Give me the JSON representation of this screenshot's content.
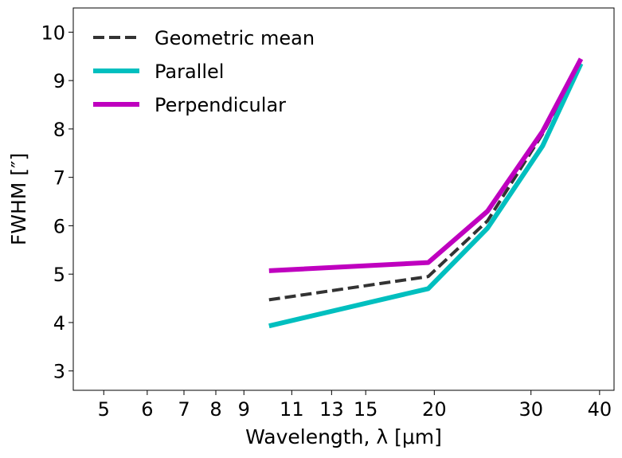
{
  "chart_data": {
    "type": "line",
    "title": "",
    "xlabel": "Wavelength, λ [μm]",
    "ylabel": "FWHM [″]",
    "xscale": "log",
    "xlim": [
      4.4,
      42.5
    ],
    "ylim": [
      2.6,
      10.5
    ],
    "xticks": [
      5,
      6,
      7,
      8,
      9,
      11,
      13,
      15,
      20,
      30,
      40
    ],
    "yticks": [
      3,
      4,
      5,
      6,
      7,
      8,
      9,
      10
    ],
    "grid": false,
    "legend_position": "top-left",
    "series": [
      {
        "name": "Geometric mean",
        "color": "#333333",
        "style": "dashed",
        "x": [
          10,
          19.5,
          25,
          31.5,
          37
        ],
        "y": [
          4.47,
          4.95,
          6.1,
          7.9,
          9.4
        ]
      },
      {
        "name": "Parallel",
        "color": "#00bfbf",
        "style": "solid",
        "x": [
          10,
          19.5,
          25,
          31.5,
          37
        ],
        "y": [
          3.93,
          4.7,
          5.95,
          7.65,
          9.35
        ]
      },
      {
        "name": "Perpendicular",
        "color": "#bf00bf",
        "style": "solid",
        "x": [
          10,
          19.5,
          25,
          31.5,
          37
        ],
        "y": [
          5.07,
          5.24,
          6.3,
          7.95,
          9.45
        ]
      }
    ]
  }
}
